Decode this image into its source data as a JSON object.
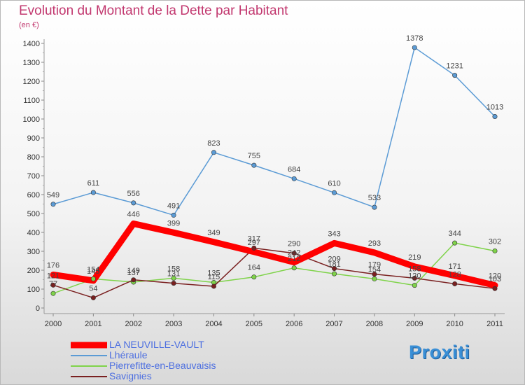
{
  "chart_data": {
    "type": "line",
    "title": "Evolution du Montant de la Dette par Habitant",
    "subtitle": "(en €)",
    "x": [
      "2000",
      "2001",
      "2002",
      "2003",
      "2004",
      "2005",
      "2006",
      "2007",
      "2008",
      "2009",
      "2010",
      "2011"
    ],
    "ylim": [
      0,
      1400
    ],
    "yticks": [
      0,
      100,
      200,
      300,
      400,
      500,
      600,
      700,
      800,
      900,
      1000,
      1100,
      1200,
      1300,
      1400
    ],
    "grid": false,
    "legend_position": "bottom-left",
    "series": [
      {
        "name": "LA NEUVILLE-VAULT",
        "color": "#ff0000",
        "values": [
          176,
          145,
          446,
          399,
          349,
          297,
          242,
          343,
          293,
          219,
          171,
          120
        ]
      },
      {
        "name": "Lhéraule",
        "color": "#5b9bd5",
        "values": [
          549,
          611,
          556,
          491,
          823,
          755,
          684,
          610,
          533,
          1378,
          1231,
          1013
        ]
      },
      {
        "name": "Pierrefitte-en-Beauvaisis",
        "color": "#7fd34a",
        "values": [
          77,
          154,
          137,
          158,
          135,
          164,
          212,
          181,
          154,
          120,
          344,
          302
        ]
      },
      {
        "name": "Savignies",
        "color": "#7a2020",
        "values": [
          121,
          54,
          149,
          131,
          115,
          317,
          290,
          209,
          179,
          158,
          128,
          103
        ]
      }
    ]
  },
  "logo": {
    "text": "Proxiti"
  }
}
